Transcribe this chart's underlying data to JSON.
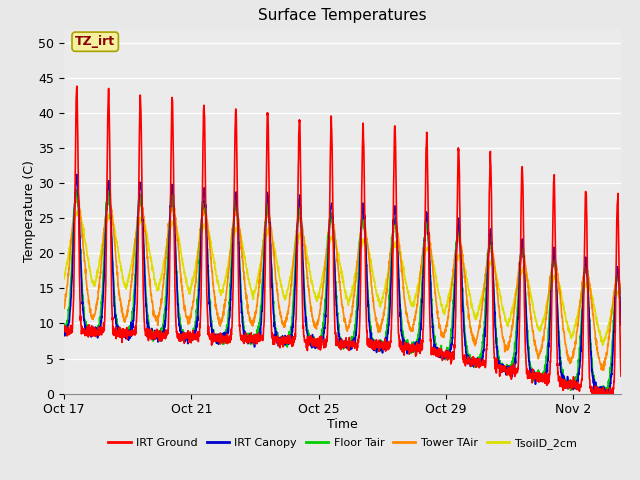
{
  "title": "Surface Temperatures",
  "xlabel": "Time",
  "ylabel": "Temperature (C)",
  "ylim": [
    0,
    52
  ],
  "yticks": [
    0,
    5,
    10,
    15,
    20,
    25,
    30,
    35,
    40,
    45,
    50
  ],
  "bg_color": "#e8e8e8",
  "plot_bg_color": "#ebebeb",
  "grid_color": "#ffffff",
  "annotation_text": "TZ_irt",
  "annotation_bg": "#f5f0a0",
  "annotation_fg": "#8b0000",
  "legend": [
    "IRT Ground",
    "IRT Canopy",
    "Floor Tair",
    "Tower TAir",
    "TsoilD_2cm"
  ],
  "legend_colors": [
    "#ff0000",
    "#0000cc",
    "#00cc00",
    "#ff8800",
    "#dddd00"
  ],
  "line_widths": [
    1.2,
    1.2,
    1.2,
    1.2,
    1.2
  ],
  "xtick_labels": [
    "Oct 17",
    "Oct 21",
    "Oct 25",
    "Oct 29",
    "Nov 2"
  ],
  "num_days": 18,
  "seed": 42
}
